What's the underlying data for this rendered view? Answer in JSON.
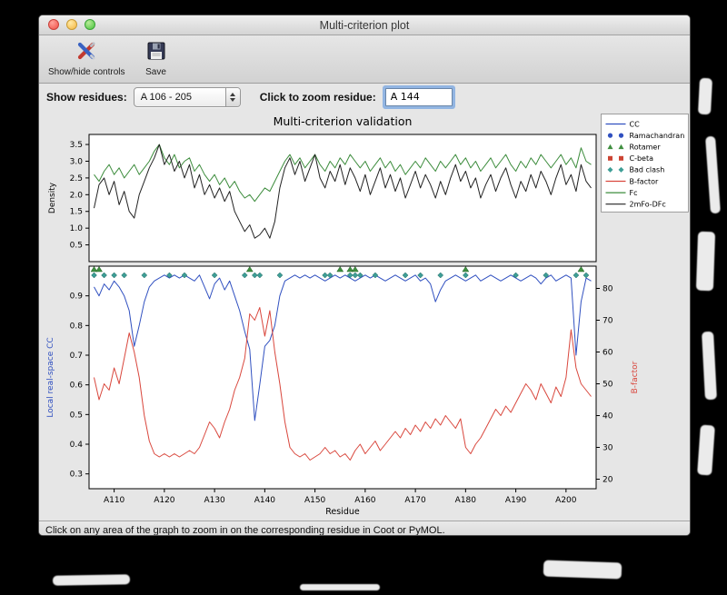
{
  "window": {
    "title": "Multi-criterion plot",
    "toolbar": {
      "show_hide_label": "Show/hide controls",
      "save_label": "Save"
    },
    "controls": {
      "show_residues_label": "Show residues:",
      "residue_range_value": "A 106 - 205",
      "zoom_residue_label": "Click to zoom residue:",
      "zoom_residue_value": "A 144"
    },
    "status_bar": "Click on any area of the graph to zoom in on the corresponding residue in Coot or PyMOL."
  },
  "chart_data": {
    "type": "line",
    "title": "Multi-criterion validation",
    "x": {
      "start": 106,
      "end": 205,
      "xlim": [
        105,
        206
      ],
      "xlabel": "Residue",
      "xticks": [
        110,
        120,
        130,
        140,
        150,
        160,
        170,
        180,
        190,
        200
      ],
      "xtick_labels": [
        "A110",
        "A120",
        "A130",
        "A140",
        "A150",
        "A160",
        "A170",
        "A180",
        "A190",
        "A200"
      ]
    },
    "top_plot": {
      "ylabel": "Density",
      "ylim": [
        0.0,
        3.8
      ],
      "yticks": [
        0.5,
        1.0,
        1.5,
        2.0,
        2.5,
        3.0,
        3.5
      ],
      "series": [
        {
          "name": "Fc",
          "color": "#3c8c3c",
          "values": [
            2.6,
            2.4,
            2.7,
            2.9,
            2.6,
            2.8,
            2.5,
            2.7,
            2.9,
            2.6,
            2.8,
            3.0,
            3.3,
            3.5,
            3.1,
            2.9,
            3.2,
            2.8,
            3.0,
            3.1,
            2.7,
            2.9,
            2.6,
            2.4,
            2.6,
            2.3,
            2.5,
            2.2,
            2.4,
            2.1,
            1.9,
            2.0,
            1.8,
            2.0,
            2.2,
            2.1,
            2.4,
            2.7,
            3.0,
            3.2,
            2.9,
            3.1,
            2.8,
            3.0,
            3.2,
            2.9,
            2.7,
            3.0,
            2.8,
            3.1,
            2.9,
            3.2,
            3.0,
            2.8,
            3.0,
            2.7,
            2.9,
            3.1,
            2.8,
            3.0,
            2.7,
            2.9,
            2.6,
            2.8,
            3.0,
            2.8,
            3.1,
            2.9,
            2.7,
            3.0,
            2.8,
            3.0,
            3.2,
            2.9,
            3.1,
            2.8,
            3.0,
            2.7,
            2.9,
            3.1,
            2.8,
            3.0,
            3.2,
            2.9,
            2.7,
            3.0,
            2.8,
            3.1,
            2.9,
            3.2,
            3.0,
            2.8,
            3.0,
            3.2,
            2.9,
            3.1,
            2.8,
            3.4,
            3.0,
            2.9
          ]
        },
        {
          "name": "2mFo-DFc",
          "color": "#222222",
          "values": [
            1.6,
            2.3,
            2.5,
            2.0,
            2.4,
            1.7,
            2.1,
            1.5,
            1.3,
            2.0,
            2.4,
            2.8,
            3.1,
            3.5,
            2.9,
            3.2,
            2.7,
            3.0,
            2.5,
            2.9,
            2.2,
            2.6,
            2.0,
            2.3,
            1.9,
            2.2,
            1.8,
            2.1,
            1.5,
            1.2,
            0.9,
            1.1,
            0.7,
            0.8,
            1.0,
            0.7,
            1.2,
            2.2,
            2.8,
            3.1,
            2.6,
            3.0,
            2.4,
            2.8,
            3.2,
            2.5,
            2.2,
            2.7,
            2.4,
            2.9,
            2.3,
            2.8,
            2.5,
            2.1,
            2.6,
            2.0,
            2.4,
            2.8,
            2.2,
            2.6,
            2.1,
            2.5,
            1.9,
            2.3,
            2.7,
            2.2,
            2.6,
            2.3,
            1.9,
            2.4,
            2.0,
            2.5,
            2.9,
            2.4,
            2.7,
            2.2,
            2.5,
            1.9,
            2.3,
            2.6,
            2.1,
            2.5,
            2.8,
            2.3,
            1.9,
            2.4,
            2.1,
            2.6,
            2.2,
            2.7,
            2.4,
            2.0,
            2.5,
            2.9,
            2.3,
            2.6,
            2.1,
            2.9,
            2.4,
            2.2
          ]
        }
      ]
    },
    "bottom_plot": {
      "ylabel_left": "Local real-space CC",
      "ylabel_right": "B-factor",
      "ylim_left": [
        0.25,
        1.0
      ],
      "yticks_left": [
        0.3,
        0.4,
        0.5,
        0.6,
        0.7,
        0.8,
        0.9
      ],
      "ylim_right": [
        17,
        87
      ],
      "yticks_right": [
        20,
        30,
        40,
        50,
        60,
        70,
        80
      ],
      "series": [
        {
          "name": "CC",
          "axis": "left",
          "color": "#3050c0",
          "values": [
            0.93,
            0.9,
            0.94,
            0.92,
            0.95,
            0.93,
            0.9,
            0.85,
            0.73,
            0.8,
            0.88,
            0.93,
            0.95,
            0.96,
            0.97,
            0.96,
            0.97,
            0.96,
            0.97,
            0.96,
            0.95,
            0.97,
            0.93,
            0.89,
            0.94,
            0.96,
            0.92,
            0.95,
            0.9,
            0.85,
            0.78,
            0.72,
            0.48,
            0.6,
            0.73,
            0.75,
            0.8,
            0.9,
            0.95,
            0.96,
            0.97,
            0.96,
            0.97,
            0.96,
            0.97,
            0.96,
            0.95,
            0.96,
            0.97,
            0.96,
            0.97,
            0.96,
            0.95,
            0.96,
            0.97,
            0.96,
            0.97,
            0.96,
            0.95,
            0.96,
            0.97,
            0.96,
            0.95,
            0.96,
            0.97,
            0.95,
            0.96,
            0.94,
            0.88,
            0.92,
            0.95,
            0.96,
            0.97,
            0.96,
            0.95,
            0.96,
            0.97,
            0.95,
            0.96,
            0.97,
            0.96,
            0.95,
            0.96,
            0.97,
            0.96,
            0.95,
            0.96,
            0.97,
            0.96,
            0.94,
            0.96,
            0.97,
            0.95,
            0.96,
            0.97,
            0.96,
            0.7,
            0.88,
            0.96,
            0.95
          ]
        },
        {
          "name": "B-factor",
          "axis": "right",
          "color": "#d9473d",
          "values": [
            52,
            45,
            50,
            48,
            55,
            50,
            58,
            66,
            60,
            52,
            40,
            32,
            28,
            27,
            28,
            27,
            28,
            27,
            28,
            29,
            28,
            30,
            34,
            38,
            36,
            33,
            38,
            42,
            48,
            52,
            58,
            72,
            70,
            74,
            65,
            73,
            60,
            50,
            38,
            30,
            28,
            27,
            28,
            26,
            27,
            28,
            30,
            28,
            29,
            27,
            28,
            26,
            29,
            31,
            28,
            30,
            32,
            29,
            31,
            33,
            35,
            33,
            36,
            34,
            37,
            35,
            38,
            36,
            39,
            37,
            40,
            38,
            36,
            39,
            30,
            28,
            31,
            33,
            36,
            39,
            42,
            40,
            43,
            41,
            44,
            47,
            50,
            48,
            45,
            50,
            47,
            44,
            49,
            46,
            52,
            67,
            55,
            50,
            48,
            46
          ]
        }
      ],
      "markers": {
        "bad_clash": {
          "color": "#3d9e96",
          "residues": [
            106,
            108,
            110,
            112,
            116,
            121,
            124,
            130,
            136,
            138,
            139,
            143,
            152,
            153,
            157,
            158,
            159,
            162,
            168,
            171,
            175,
            180,
            190,
            196,
            202,
            204
          ]
        },
        "rotamer": {
          "color": "#3f8f3f",
          "residues": [
            106,
            107,
            137,
            155,
            157,
            158,
            180,
            203
          ]
        }
      }
    },
    "legend": [
      {
        "label": "CC",
        "marker": "line",
        "color": "#3050c0"
      },
      {
        "label": "Ramachandran",
        "marker": "circle",
        "color": "#3050c0"
      },
      {
        "label": "Rotamer",
        "marker": "triangle",
        "color": "#3f8f3f"
      },
      {
        "label": "C-beta",
        "marker": "square",
        "color": "#cc4433"
      },
      {
        "label": "Bad clash",
        "marker": "diamond",
        "color": "#3d9e96"
      },
      {
        "label": "B-factor",
        "marker": "line",
        "color": "#d9473d"
      },
      {
        "label": "Fc",
        "marker": "line",
        "color": "#3c8c3c"
      },
      {
        "label": "2mFo-DFc",
        "marker": "line",
        "color": "#222222"
      }
    ]
  }
}
